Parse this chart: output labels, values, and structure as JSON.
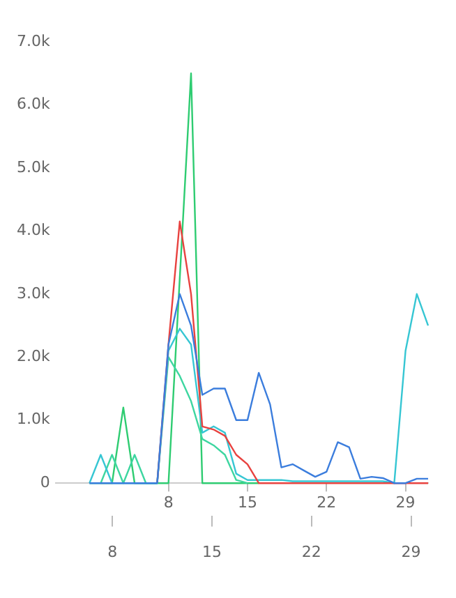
{
  "chart_data": {
    "type": "line",
    "x": [
      1,
      2,
      3,
      4,
      5,
      6,
      7,
      8,
      9,
      10,
      11,
      12,
      13,
      14,
      15,
      16,
      17,
      18,
      19,
      20,
      21,
      22,
      23,
      24,
      25,
      26,
      27,
      28,
      29,
      30,
      31
    ],
    "series": [
      {
        "color": "#3b7ddd",
        "values": [
          0,
          0,
          0,
          0,
          0,
          0,
          0,
          2200,
          3000,
          2500,
          1400,
          1500,
          1500,
          1000,
          1000,
          1750,
          1250,
          250,
          300,
          200,
          100,
          180,
          650,
          570,
          70,
          100,
          80,
          0,
          0,
          70,
          70
        ]
      },
      {
        "color": "#e8423f",
        "values": [
          null,
          null,
          null,
          null,
          null,
          null,
          0,
          2200,
          4150,
          3000,
          900,
          850,
          750,
          450,
          300,
          0,
          0,
          0,
          0,
          0,
          0,
          0,
          0,
          0,
          0,
          0,
          0,
          0,
          0,
          0,
          0
        ]
      },
      {
        "color": "#36c6d3",
        "values": [
          0,
          450,
          0,
          0,
          0,
          0,
          0,
          2100,
          2450,
          2200,
          800,
          900,
          800,
          150,
          50,
          50,
          50,
          50,
          30,
          30,
          30,
          30,
          30,
          30,
          30,
          30,
          30,
          0,
          2100,
          3000,
          2500
        ]
      },
      {
        "color": "#3dd6a0",
        "values": [
          0,
          0,
          450,
          0,
          450,
          0,
          0,
          2000,
          1700,
          1300,
          700,
          600,
          450,
          50,
          0,
          null,
          null,
          null,
          null,
          null,
          null,
          null,
          null,
          null,
          null,
          null,
          null,
          null,
          null,
          null,
          null
        ]
      },
      {
        "color": "#2ecc71",
        "values": [
          null,
          0,
          0,
          1200,
          0,
          0,
          0,
          0,
          3250,
          6500,
          0,
          0,
          0,
          0,
          0,
          0,
          null,
          null,
          null,
          null,
          null,
          null,
          null,
          null,
          null,
          null,
          null,
          null,
          null,
          null,
          null
        ]
      }
    ],
    "xlim": [
      -2,
      31
    ],
    "xticks": [
      8,
      15,
      22,
      29
    ],
    "ylim": [
      0,
      7000
    ],
    "yticks": [
      0,
      {
        "value": 1000,
        "label": "1.0k"
      },
      {
        "value": 2000,
        "label": "2.0k"
      },
      {
        "value": 3000,
        "label": "3.0k"
      },
      {
        "value": 4000,
        "label": "4.0k"
      },
      {
        "value": 5000,
        "label": "5.0k"
      },
      {
        "value": 6000,
        "label": "6.0k"
      },
      {
        "value": 7000,
        "label": "7.0k"
      }
    ],
    "x2lim": [
      4,
      30.2
    ],
    "x2ticks": [
      8,
      15,
      22,
      29
    ],
    "grid": false,
    "legend": false,
    "marker": "none",
    "line_style": "solid"
  }
}
